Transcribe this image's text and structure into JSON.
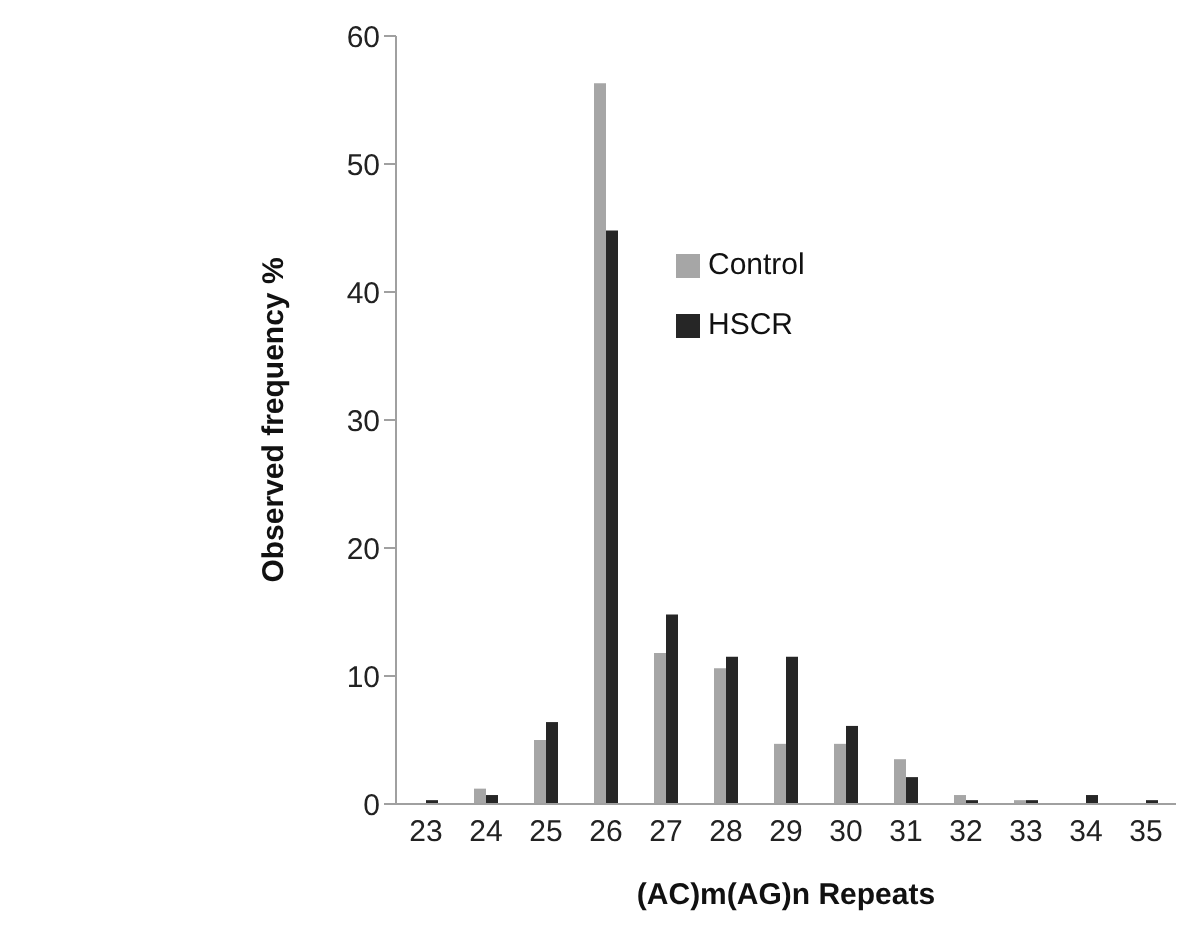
{
  "chart_data": {
    "type": "bar",
    "xlabel": "(AC)m(AG)n  Repeats",
    "ylabel": "Observed frequency %",
    "categories": [
      "23",
      "24",
      "25",
      "26",
      "27",
      "28",
      "29",
      "30",
      "31",
      "32",
      "33",
      "34",
      "35"
    ],
    "series": [
      {
        "name": "Control",
        "color": "#a6a6a6",
        "values": [
          0,
          1.2,
          5,
          56.3,
          11.8,
          10.6,
          4.7,
          4.7,
          3.5,
          0.7,
          0.3,
          0,
          0
        ]
      },
      {
        "name": "HSCR",
        "color": "#262626",
        "values": [
          0.3,
          0.7,
          6.4,
          44.8,
          14.8,
          11.5,
          11.5,
          6.1,
          2.1,
          0.3,
          0.3,
          0.7,
          0.3
        ]
      }
    ],
    "ylim": [
      0,
      60
    ],
    "yticks": [
      0,
      10,
      20,
      30,
      40,
      50,
      60
    ],
    "grid": false,
    "legend": "top"
  }
}
